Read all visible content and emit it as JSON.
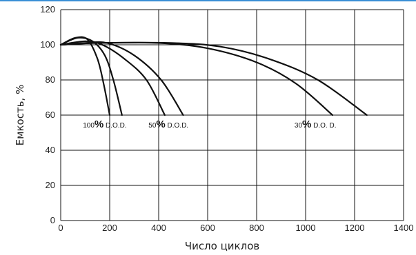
{
  "chart_data": {
    "type": "line",
    "xlabel": "Число циклов",
    "ylabel": "Емкость, %",
    "xlim": [
      0,
      1400
    ],
    "ylim": [
      0,
      120
    ],
    "xticks": [
      "0",
      "200",
      "400",
      "600",
      "800",
      "1000",
      "1200",
      "1400"
    ],
    "yticks": [
      "0",
      "20",
      "40",
      "60",
      "80",
      "100",
      "120"
    ],
    "grid": true,
    "line_color": "#111111",
    "curves": [
      {
        "group": "100",
        "points": [
          [
            0,
            100
          ],
          [
            60,
            104
          ],
          [
            110,
            103
          ],
          [
            150,
            92
          ],
          [
            175,
            78
          ],
          [
            200,
            60
          ]
        ]
      },
      {
        "group": "100",
        "points": [
          [
            0,
            100
          ],
          [
            70,
            104
          ],
          [
            130,
            102
          ],
          [
            180,
            94
          ],
          [
            215,
            80
          ],
          [
            250,
            60
          ]
        ]
      },
      {
        "group": "50",
        "points": [
          [
            0,
            100
          ],
          [
            100,
            102
          ],
          [
            170,
            100
          ],
          [
            260,
            92
          ],
          [
            350,
            80
          ],
          [
            425,
            60
          ]
        ]
      },
      {
        "group": "50",
        "points": [
          [
            0,
            100
          ],
          [
            100,
            101
          ],
          [
            190,
            101
          ],
          [
            300,
            94
          ],
          [
            410,
            80
          ],
          [
            500,
            60
          ]
        ]
      },
      {
        "group": "30",
        "points": [
          [
            0,
            100
          ],
          [
            150,
            101
          ],
          [
            400,
            101
          ],
          [
            600,
            98
          ],
          [
            800,
            90
          ],
          [
            960,
            78
          ],
          [
            1110,
            60
          ]
        ]
      },
      {
        "group": "30",
        "points": [
          [
            0,
            100
          ],
          [
            150,
            101
          ],
          [
            450,
            101
          ],
          [
            650,
            99
          ],
          [
            850,
            92
          ],
          [
            1050,
            80
          ],
          [
            1250,
            60
          ]
        ]
      }
    ],
    "annotations": [
      {
        "num": "100",
        "pct": "%",
        "suffix": " D.O.D.",
        "x": 180,
        "y": 55
      },
      {
        "num": "50",
        "pct": "%",
        "suffix": " D.O.D.",
        "x": 440,
        "y": 55
      },
      {
        "num": "30",
        "pct": "%",
        "suffix": " D.O. D.",
        "x": 1040,
        "y": 55
      }
    ]
  }
}
